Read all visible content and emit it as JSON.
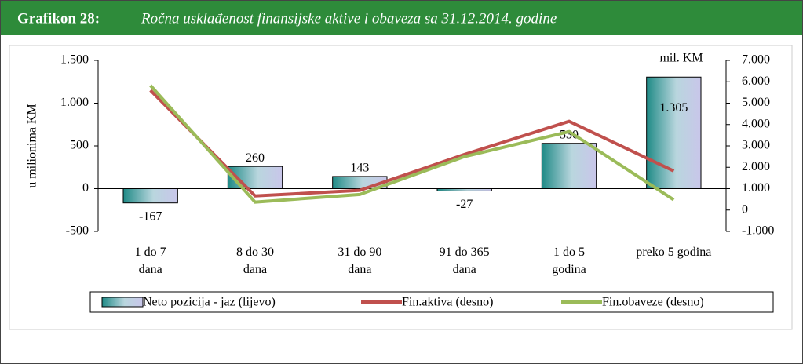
{
  "chart_data": {
    "type": "bar_line",
    "title": "Grafikon 28:",
    "subtitle": "Ročna usklađenost finansijske aktive i obaveza sa 31.12.2014. godine",
    "y_label": "u milionima  KM",
    "unit_label": "mil. KM",
    "categories": [
      "1 do 7\ndana",
      "8 do 30\ndana",
      "31 do 90\ndana",
      "91 do 365\ndana",
      "1 do 5\ngodina",
      "preko 5 godina"
    ],
    "series": [
      {
        "name": "Neto pozicija - jaz (lijevo)",
        "type": "bar",
        "color": "#2a8c88",
        "values": [
          -167,
          260,
          143,
          -27,
          530,
          1305
        ],
        "value_labels": [
          "-167",
          "260",
          "143",
          "-27",
          "530",
          "1.305"
        ]
      },
      {
        "name": "Fin.aktiva (desno)",
        "type": "line",
        "axis": "y2",
        "color": "#c0504d",
        "values": [
          5600,
          660,
          920,
          2600,
          4150,
          1830
        ]
      },
      {
        "name": "Fin.obaveze (desno)",
        "type": "line",
        "axis": "y2",
        "color": "#9bbb59",
        "values": [
          5830,
          370,
          730,
          2500,
          3670,
          480
        ]
      }
    ],
    "ylim": [
      -500,
      1500
    ],
    "yticks": [
      {
        "value": 1500,
        "label": "1.500"
      },
      {
        "value": 1000,
        "label": "1.000"
      },
      500,
      0,
      -500
    ],
    "y2lim": [
      -1000,
      7000
    ],
    "y2ticks": [
      {
        "value": 7000,
        "label": "7.000"
      },
      {
        "value": 6000,
        "label": "6.000"
      },
      {
        "value": 5000,
        "label": "5.000"
      },
      {
        "value": 4000,
        "label": "4.000"
      },
      {
        "value": 3000,
        "label": "3.000"
      },
      {
        "value": 2000,
        "label": "2.000"
      },
      {
        "value": 1000,
        "label": "1.000"
      },
      0,
      {
        "value": -1000,
        "label": "-1.000"
      }
    ],
    "legend": "bottom"
  }
}
